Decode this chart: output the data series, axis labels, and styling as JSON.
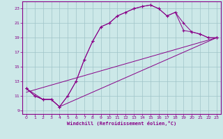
{
  "xlabel": "Windchill (Refroidissement éolien,°C)",
  "bg_color": "#cce8e8",
  "grid_color": "#9fc4c8",
  "line_color": "#880088",
  "xlim": [
    -0.5,
    23.5
  ],
  "ylim": [
    8.5,
    24.0
  ],
  "xticks": [
    0,
    1,
    2,
    3,
    4,
    5,
    6,
    7,
    8,
    9,
    10,
    11,
    12,
    13,
    14,
    15,
    16,
    17,
    18,
    19,
    20,
    21,
    22,
    23
  ],
  "yticks": [
    9,
    11,
    13,
    15,
    17,
    19,
    21,
    23
  ],
  "curve1_x": [
    0,
    1,
    2,
    3,
    4,
    5,
    6,
    7,
    8,
    9,
    10,
    11,
    12,
    13,
    14,
    15,
    16,
    17,
    18,
    19,
    20,
    21,
    22,
    23
  ],
  "curve1_y": [
    12.0,
    11.0,
    10.5,
    10.5,
    9.5,
    11.0,
    13.0,
    16.0,
    18.5,
    20.5,
    21.0,
    22.0,
    22.5,
    23.0,
    23.3,
    23.5,
    23.0,
    22.0,
    22.5,
    20.0,
    19.8,
    19.5,
    19.0,
    19.0
  ],
  "curve2_x": [
    0,
    2,
    3,
    4,
    5,
    6,
    7,
    8,
    9,
    10,
    11,
    12,
    13,
    14,
    15,
    16,
    17,
    18,
    19,
    20,
    21,
    22,
    23
  ],
  "curve2_y": [
    12.0,
    10.5,
    10.5,
    9.5,
    11.0,
    13.0,
    16.0,
    18.5,
    20.5,
    21.0,
    22.0,
    22.5,
    23.0,
    23.3,
    23.5,
    23.0,
    22.0,
    22.5,
    21.0,
    19.8,
    19.5,
    19.0,
    19.0
  ],
  "curve3_x": [
    0,
    23
  ],
  "curve3_y": [
    11.5,
    19.0
  ],
  "curve4_x": [
    0,
    1,
    2,
    3,
    4,
    23
  ],
  "curve4_y": [
    12.0,
    11.0,
    10.5,
    10.5,
    9.5,
    19.0
  ]
}
